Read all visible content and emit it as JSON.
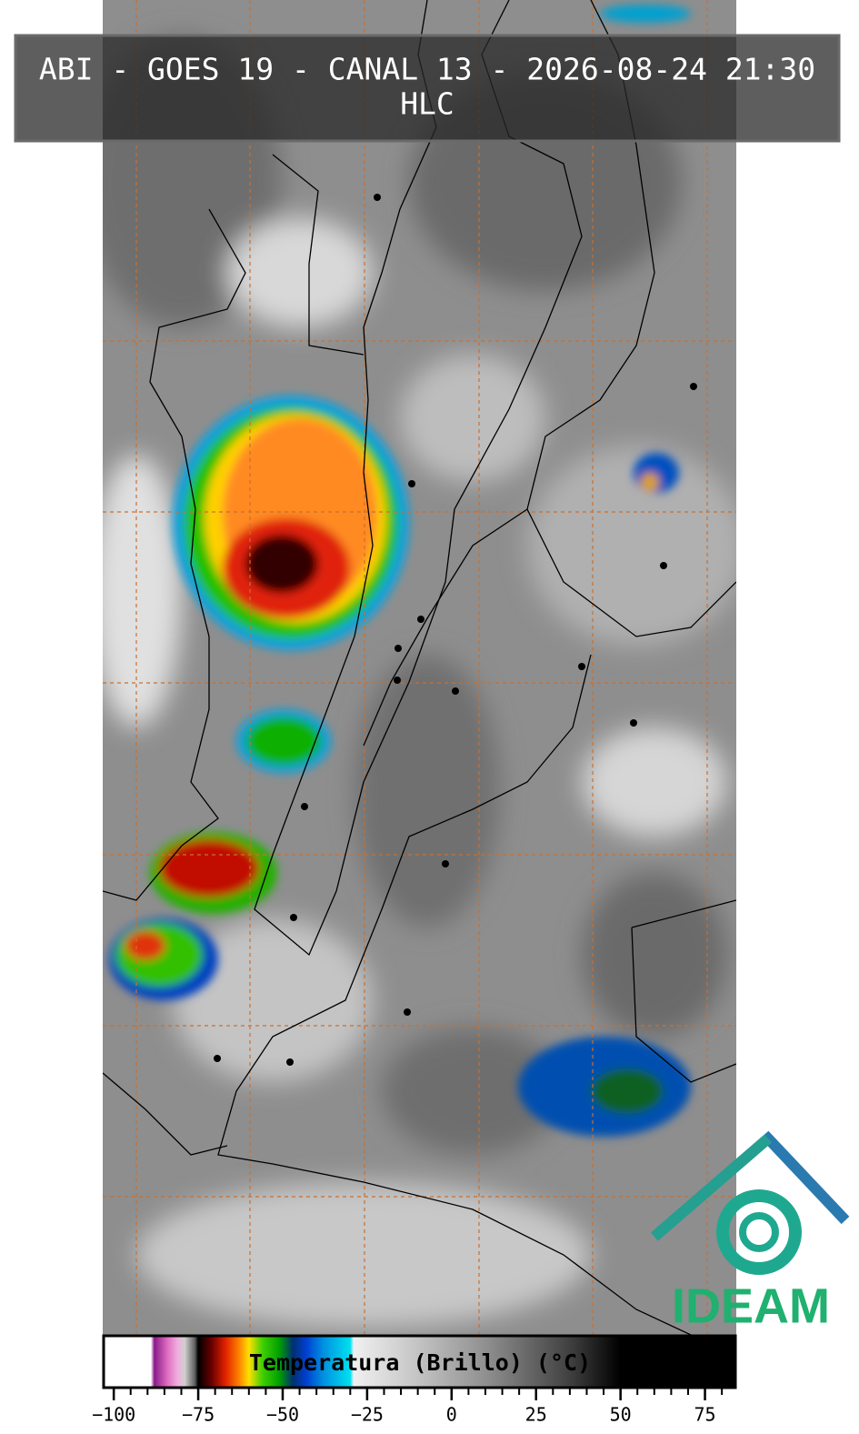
{
  "header": {
    "title": "ABI - GOES 19 - CANAL 13 - 2026-08-24 21:30",
    "subtitle": "HLC"
  },
  "colorbar": {
    "label": "Temperatura (Brillo) (°C)",
    "lim": [
      -103,
      84
    ],
    "ticks": [
      {
        "value": -100,
        "label": "−100"
      },
      {
        "value": -75,
        "label": "−75"
      },
      {
        "value": -50,
        "label": "−50"
      },
      {
        "value": -25,
        "label": "−25"
      },
      0,
      25,
      50,
      75
    ],
    "minor_step": 5,
    "colormap": [
      [
        -103,
        "#ffffff"
      ],
      [
        -89,
        "#ffffff"
      ],
      [
        -88,
        "#8a1a8a"
      ],
      [
        -84,
        "#e070c0"
      ],
      [
        -81,
        "#f0b0e0"
      ],
      [
        -79,
        "#d0d0d0"
      ],
      [
        -76,
        "#606060"
      ],
      [
        -75,
        "#000000"
      ],
      [
        -71,
        "#6a0000"
      ],
      [
        -67,
        "#e02000"
      ],
      [
        -63,
        "#ff8000"
      ],
      [
        -60,
        "#ffe000"
      ],
      [
        -56,
        "#40d000"
      ],
      [
        -51,
        "#00a000"
      ],
      [
        -47,
        "#003070"
      ],
      [
        -43,
        "#0040d0"
      ],
      [
        -38,
        "#0090e0"
      ],
      [
        -30,
        "#00e0f0"
      ],
      [
        -29,
        "#f0f0f0"
      ],
      [
        -15,
        "#d0d0d0"
      ],
      [
        10,
        "#909090"
      ],
      [
        35,
        "#404040"
      ],
      [
        50,
        "#000000"
      ],
      [
        84,
        "#000000"
      ]
    ]
  },
  "logo": {
    "text": "IDEAM"
  }
}
